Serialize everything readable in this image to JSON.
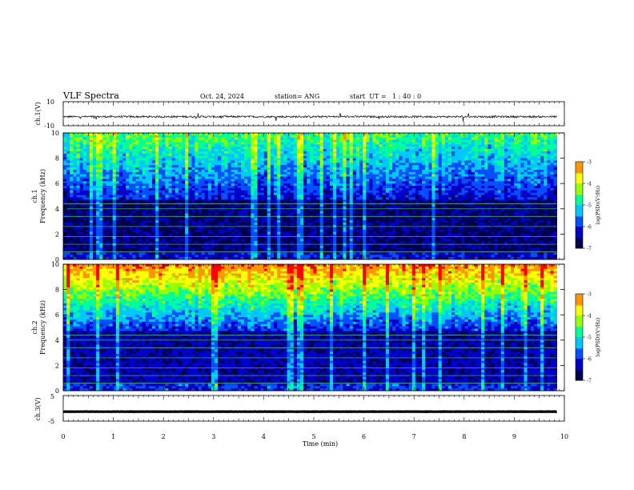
{
  "header": {
    "title": "VLF Spectra",
    "date": "Oct. 24, 2024",
    "station": "station= ANG",
    "start": "start  UT =   1 : 40 : 0"
  },
  "colors": {
    "ink": "#000000",
    "background": "#ffffff",
    "colormap": [
      "#000050",
      "#0000c8",
      "#0050ff",
      "#00c8ff",
      "#00ff96",
      "#96ff00",
      "#ffff00",
      "#ff9600",
      "#ff0000",
      "#ffe6e6"
    ]
  },
  "chart_data": [
    {
      "type": "line",
      "id": "ch1-waveform",
      "ylabel": "ch.1(V)",
      "ylim": [
        -10,
        10
      ],
      "yticks": [
        "10",
        "-10"
      ],
      "baseline": -2.5,
      "x_range_min": [
        0,
        9.85
      ]
    },
    {
      "type": "heatmap",
      "id": "ch1-spectrogram",
      "ylabel": "ch.1",
      "ylabel2": "Frequency (kHz)",
      "ylim": [
        0,
        10
      ],
      "yticks": [
        "0",
        "2",
        "4",
        "6",
        "8",
        "10"
      ],
      "xlim": [
        0,
        9.85
      ],
      "colorbar": {
        "label": "log(PSD)(V²/Hz)",
        "ticks": [
          "-3",
          "-4",
          "-5",
          "-6",
          "-7"
        ],
        "range": [
          -7,
          -3
        ]
      },
      "noise_floor_kHz": 4.7,
      "upper_band_level": -4.7
    },
    {
      "type": "heatmap",
      "id": "ch2-spectrogram",
      "ylabel": "ch.2",
      "ylabel2": "Frequency (kHz)",
      "ylim": [
        0,
        10
      ],
      "yticks": [
        "0",
        "2",
        "4",
        "6",
        "8",
        "10"
      ],
      "xlim": [
        0,
        9.85
      ],
      "colorbar": {
        "label": "log(PSD)(V²/Hz)",
        "ticks": [
          "-3",
          "-4",
          "-5",
          "-6",
          "-7"
        ],
        "range": [
          -7,
          -3
        ]
      },
      "noise_floor_kHz": 4.8,
      "upper_band_level": -3.6
    },
    {
      "type": "line",
      "id": "ch3-waveform",
      "ylabel": "ch.3(V)",
      "ylim": [
        -5,
        5
      ],
      "yticks": [
        "5",
        "-5"
      ],
      "baseline": -1.3,
      "x_range_min": [
        0,
        9.85
      ]
    }
  ],
  "xaxis": {
    "label": "Time (min)",
    "ticks": [
      "0",
      "1",
      "2",
      "3",
      "4",
      "5",
      "6",
      "7",
      "8",
      "9",
      "10"
    ],
    "range": [
      0,
      10
    ]
  }
}
